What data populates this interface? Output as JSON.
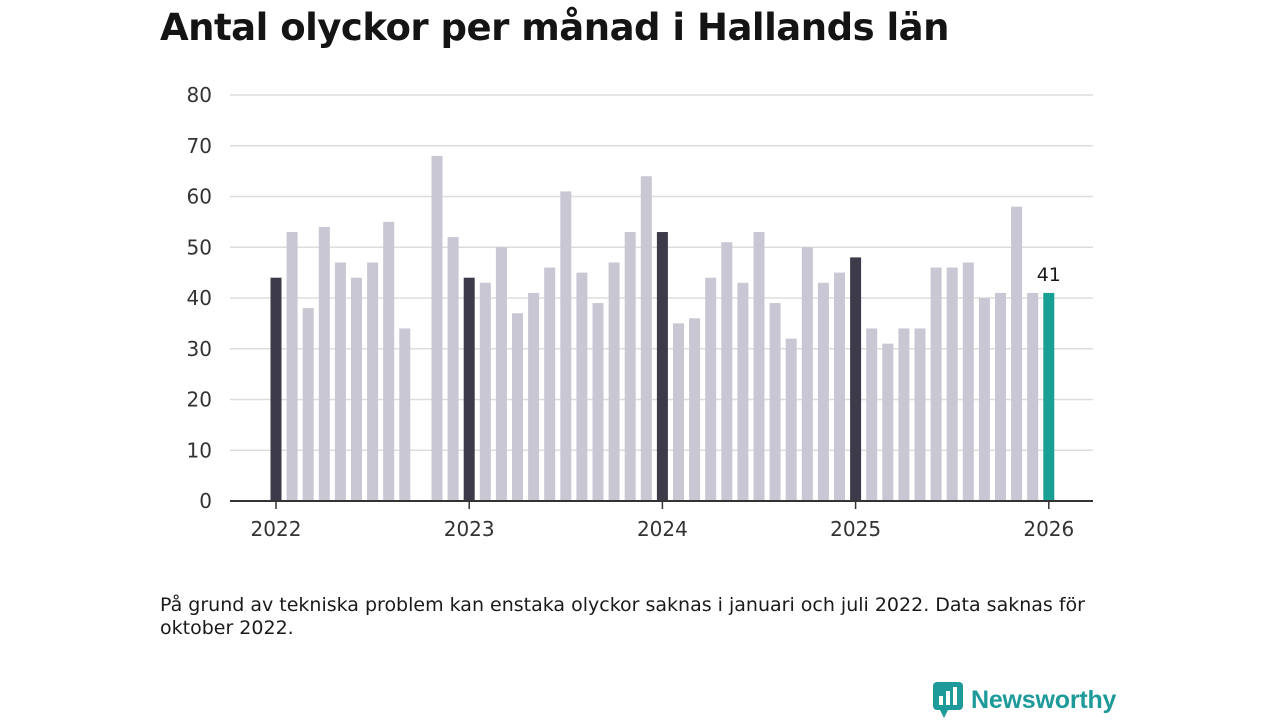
{
  "title": "Antal olyckor per månad i Hallands län",
  "note": "På grund av tekniska problem kan enstaka olyckor saknas i januari och juli 2022. Data saknas för oktober 2022.",
  "brand": {
    "name": "Newsworthy",
    "icon": "newsworthy-logo-icon"
  },
  "colors": {
    "default_bar": "#c8c7d3",
    "january_bar": "#3d3b4a",
    "latest_bar": "#19a095",
    "grid": "#dddddd",
    "axis": "#333333",
    "text": "#333333"
  },
  "chart_data": {
    "type": "bar",
    "title": "Antal olyckor per månad i Hallands län",
    "xlabel": "",
    "ylabel": "",
    "ylim": [
      0,
      80
    ],
    "yticks": [
      0,
      10,
      20,
      30,
      40,
      50,
      60,
      70,
      80
    ],
    "grid": true,
    "x_tick_labels": [
      "2022",
      "2023",
      "2024",
      "2025",
      "2026"
    ],
    "x_tick_indices": [
      0,
      12,
      24,
      36,
      48
    ],
    "categories": [
      "2022-01",
      "2022-02",
      "2022-03",
      "2022-04",
      "2022-05",
      "2022-06",
      "2022-07",
      "2022-08",
      "2022-09",
      "2022-10",
      "2022-11",
      "2022-12",
      "2023-01",
      "2023-02",
      "2023-03",
      "2023-04",
      "2023-05",
      "2023-06",
      "2023-07",
      "2023-08",
      "2023-09",
      "2023-10",
      "2023-11",
      "2023-12",
      "2024-01",
      "2024-02",
      "2024-03",
      "2024-04",
      "2024-05",
      "2024-06",
      "2024-07",
      "2024-08",
      "2024-09",
      "2024-10",
      "2024-11",
      "2024-12",
      "2025-01",
      "2025-02",
      "2025-03",
      "2025-04",
      "2025-05",
      "2025-06",
      "2025-07",
      "2025-08",
      "2025-09",
      "2025-10",
      "2025-11",
      "2025-12",
      "2026-01"
    ],
    "values": [
      44,
      53,
      38,
      54,
      47,
      44,
      47,
      55,
      34,
      null,
      68,
      52,
      44,
      43,
      50,
      37,
      41,
      46,
      61,
      45,
      39,
      47,
      53,
      64,
      53,
      35,
      36,
      44,
      51,
      43,
      53,
      39,
      32,
      50,
      43,
      45,
      48,
      34,
      31,
      34,
      34,
      46,
      46,
      47,
      40,
      41,
      58,
      41,
      41
    ],
    "highlighted_indices": [
      0,
      12,
      24,
      36
    ],
    "latest_index": 48,
    "annotations": [
      {
        "index": 48,
        "text": "41"
      }
    ]
  }
}
